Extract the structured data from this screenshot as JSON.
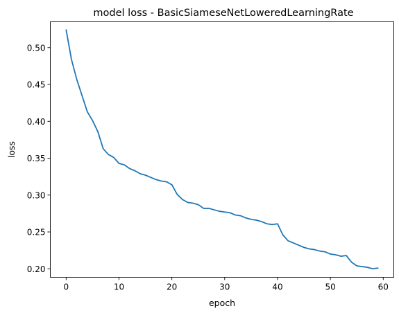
{
  "chart_data": {
    "type": "line",
    "title": "model loss - BasicSiameseNetLoweredLearningRate",
    "xlabel": "epoch",
    "ylabel": "loss",
    "xlim": [
      -3,
      62
    ],
    "ylim": [
      0.1885,
      0.535
    ],
    "xticks": [
      0,
      10,
      20,
      30,
      40,
      50,
      60
    ],
    "xtick_labels": [
      "0",
      "10",
      "20",
      "30",
      "40",
      "50",
      "60"
    ],
    "yticks": [
      0.2,
      0.25,
      0.3,
      0.35,
      0.4,
      0.45,
      0.5
    ],
    "ytick_labels": [
      "0.20",
      "0.25",
      "0.30",
      "0.35",
      "0.40",
      "0.45",
      "0.50"
    ],
    "grid": false,
    "legend": "none",
    "series": [
      {
        "color": "#1f77b4",
        "x": [
          0,
          1,
          2,
          3,
          4,
          5,
          6,
          7,
          8,
          9,
          10,
          11,
          12,
          13,
          14,
          15,
          16,
          17,
          18,
          19,
          20,
          21,
          22,
          23,
          24,
          25,
          26,
          27,
          28,
          29,
          30,
          31,
          32,
          33,
          34,
          35,
          36,
          37,
          38,
          39,
          40,
          41,
          42,
          43,
          44,
          45,
          46,
          47,
          48,
          49,
          50,
          51,
          52,
          53,
          54,
          55,
          56,
          57,
          58,
          59
        ],
        "values": [
          0.524,
          0.484,
          0.457,
          0.435,
          0.413,
          0.401,
          0.386,
          0.363,
          0.355,
          0.351,
          0.343,
          0.341,
          0.336,
          0.333,
          0.329,
          0.327,
          0.324,
          0.321,
          0.319,
          0.318,
          0.314,
          0.301,
          0.294,
          0.29,
          0.289,
          0.287,
          0.282,
          0.282,
          0.28,
          0.278,
          0.277,
          0.276,
          0.273,
          0.272,
          0.269,
          0.267,
          0.266,
          0.264,
          0.261,
          0.26,
          0.261,
          0.246,
          0.238,
          0.235,
          0.232,
          0.229,
          0.227,
          0.226,
          0.224,
          0.223,
          0.22,
          0.219,
          0.217,
          0.218,
          0.209,
          0.204,
          0.203,
          0.202,
          0.2,
          0.201
        ]
      }
    ]
  }
}
